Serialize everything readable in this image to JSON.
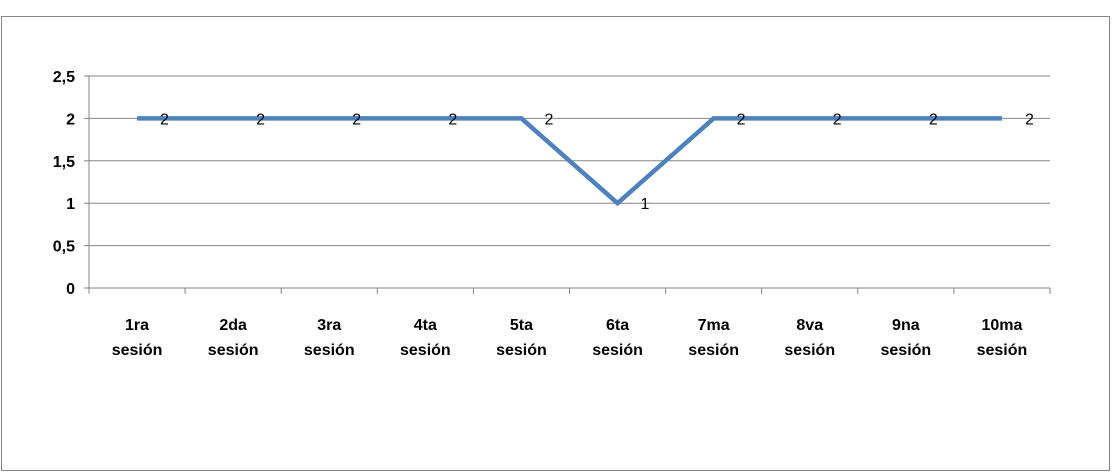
{
  "chart_data": {
    "type": "line",
    "title": "",
    "xlabel": "",
    "ylabel": "",
    "categories": [
      [
        "1ra",
        "sesión"
      ],
      [
        "2da",
        "sesión"
      ],
      [
        "3ra",
        "sesión"
      ],
      [
        "4ta",
        "sesión"
      ],
      [
        "5ta",
        "sesión"
      ],
      [
        "6ta",
        "sesión"
      ],
      [
        "7ma",
        "sesión"
      ],
      [
        "8va",
        "sesión"
      ],
      [
        "9na",
        "sesión"
      ],
      [
        "10ma",
        "sesión"
      ]
    ],
    "series": [
      {
        "values": [
          2,
          2,
          2,
          2,
          2,
          1,
          2,
          2,
          2,
          2
        ],
        "color": "#4f81bd"
      }
    ],
    "data_labels": [
      "2",
      "2",
      "2",
      "2",
      "2",
      "1",
      "2",
      "2",
      "2",
      "2"
    ],
    "yticks": [
      "0",
      "0,5",
      "1",
      "1,5",
      "2",
      "2,5"
    ],
    "ytick_values": [
      0,
      0.5,
      1,
      1.5,
      2,
      2.5
    ],
    "ylim": [
      0,
      2.5
    ],
    "grid": true,
    "legend": "none",
    "colors": {
      "gridline": "#868686",
      "axis": "#868686",
      "line": "#4f81bd"
    }
  }
}
